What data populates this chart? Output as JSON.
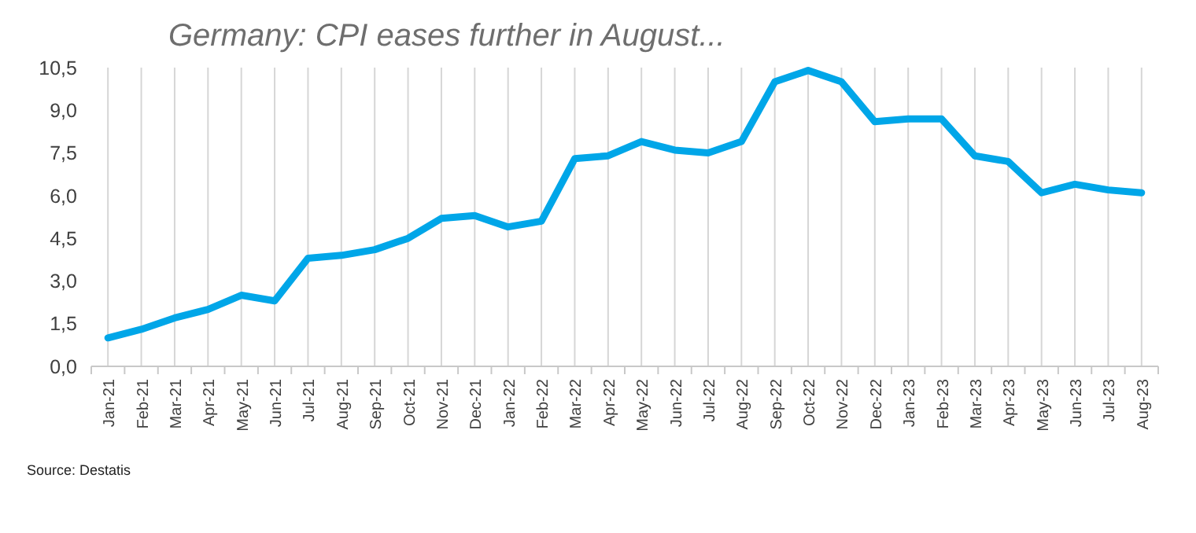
{
  "chart_data": {
    "type": "line",
    "title": "Germany: CPI eases further in August...",
    "annotations": [
      "Source: Destatis"
    ],
    "categories": [
      "Jan-21",
      "Feb-21",
      "Mar-21",
      "Apr-21",
      "May-21",
      "Jun-21",
      "Jul-21",
      "Aug-21",
      "Sep-21",
      "Oct-21",
      "Nov-21",
      "Dec-21",
      "Jan-22",
      "Feb-22",
      "Mar-22",
      "Apr-22",
      "May-22",
      "Jun-22",
      "Jul-22",
      "Aug-22",
      "Sep-22",
      "Oct-22",
      "Nov-22",
      "Dec-22",
      "Jan-23",
      "Feb-23",
      "Mar-23",
      "Apr-23",
      "May-23",
      "Jun-23",
      "Jul-23",
      "Aug-23"
    ],
    "series": [
      {
        "color": "#00a6e8",
        "values": [
          1.0,
          1.3,
          1.7,
          2.0,
          2.5,
          2.3,
          3.8,
          3.9,
          4.1,
          4.5,
          5.2,
          5.3,
          4.9,
          5.1,
          7.3,
          7.4,
          7.9,
          7.6,
          7.5,
          7.9,
          10.0,
          10.4,
          10.0,
          8.6,
          8.7,
          8.7,
          7.4,
          7.2,
          6.1,
          6.4,
          6.2,
          6.1
        ]
      }
    ],
    "ylim": [
      0,
      10.5
    ],
    "yticks": [
      {
        "value": 0,
        "label": "0,0"
      },
      {
        "value": 1.5,
        "label": "1,5"
      },
      {
        "value": 3,
        "label": "3,0"
      },
      {
        "value": 4.5,
        "label": "4,5"
      },
      {
        "value": 6,
        "label": "6,0"
      },
      {
        "value": 7.5,
        "label": "7,5"
      },
      {
        "value": 9,
        "label": "9,0"
      },
      {
        "value": 10.5,
        "label": "10,5"
      }
    ],
    "grid": "x",
    "marker": "none",
    "line_style": "solid"
  }
}
